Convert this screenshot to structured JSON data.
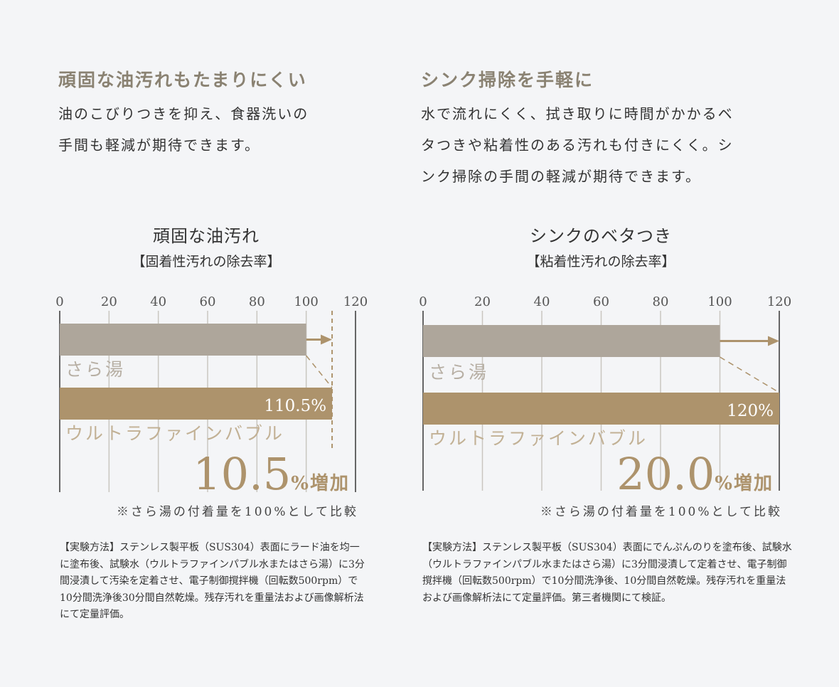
{
  "sections": [
    {
      "heading": "頑固な油汚れもたまりにくい",
      "lead": [
        "油のこびりつきを抑え、食器洗いの",
        "手間も軽減が期待できます。"
      ]
    },
    {
      "heading": "シンク掃除を手軽に",
      "lead": [
        "水で流れにくく、拭き取りに時間がかかるベ",
        "タつきや粘着性のある汚れも付きにくく。シ",
        "ンク掃除の手間の軽減が期待できます。"
      ]
    }
  ],
  "chart_data": [
    {
      "type": "bar",
      "orientation": "horizontal",
      "title": "頑固な油汚れ",
      "subtitle": "【固着性汚れの除去率】",
      "xlim": [
        0,
        120
      ],
      "xticks": [
        "0",
        "20",
        "40",
        "60",
        "80",
        "100",
        "120"
      ],
      "grid": true,
      "categories": [
        "さら湯",
        "ウルトラファインバブル"
      ],
      "values": [
        100,
        110.5
      ],
      "value_labels": [
        "",
        "110.5%"
      ],
      "colors": [
        "#aea69b",
        "#ad936c"
      ],
      "highlight_number": "10.5",
      "highlight_unit": "%増加",
      "footnote": "※さら湯の付着量を100%として比較",
      "method": "【実験方法】ステンレス製平板（SUS304）表面にラード油を均一に塗布後、試験水（ウルトラファインパブル水またはさら湯）に3分間浸漬して汚染を定着させ、電子制御撹拌機（回転数500rpm）で10分間洗浄後30分間自然乾燥。残存汚れを重量法および画像解析法にて定量評価。"
    },
    {
      "type": "bar",
      "orientation": "horizontal",
      "title": "シンクのベタつき",
      "subtitle": "【粘着性汚れの除去率】",
      "xlim": [
        0,
        120
      ],
      "xticks": [
        "0",
        "20",
        "40",
        "60",
        "80",
        "100",
        "120"
      ],
      "grid": true,
      "categories": [
        "さら湯",
        "ウルトラファインバブル"
      ],
      "values": [
        100,
        120
      ],
      "value_labels": [
        "",
        "120%"
      ],
      "colors": [
        "#aea69b",
        "#ad936c"
      ],
      "highlight_number": "20.0",
      "highlight_unit": "%増加",
      "footnote": "※さら湯の付着量を100%として比較",
      "method": "【実験方法】ステンレス製平板（SUS304）表面にでんぷんのりを塗布後、試験水（ウルトラファインパブル水またはさら湯）に3分間浸漬して定着させ、電子制御撹拌機（回転数500rpm）で10分間洗浄後、10分間自然乾燥。残存汚れを重量法および画像解析法にて定量評価。第三者機関にて検証。"
    }
  ]
}
